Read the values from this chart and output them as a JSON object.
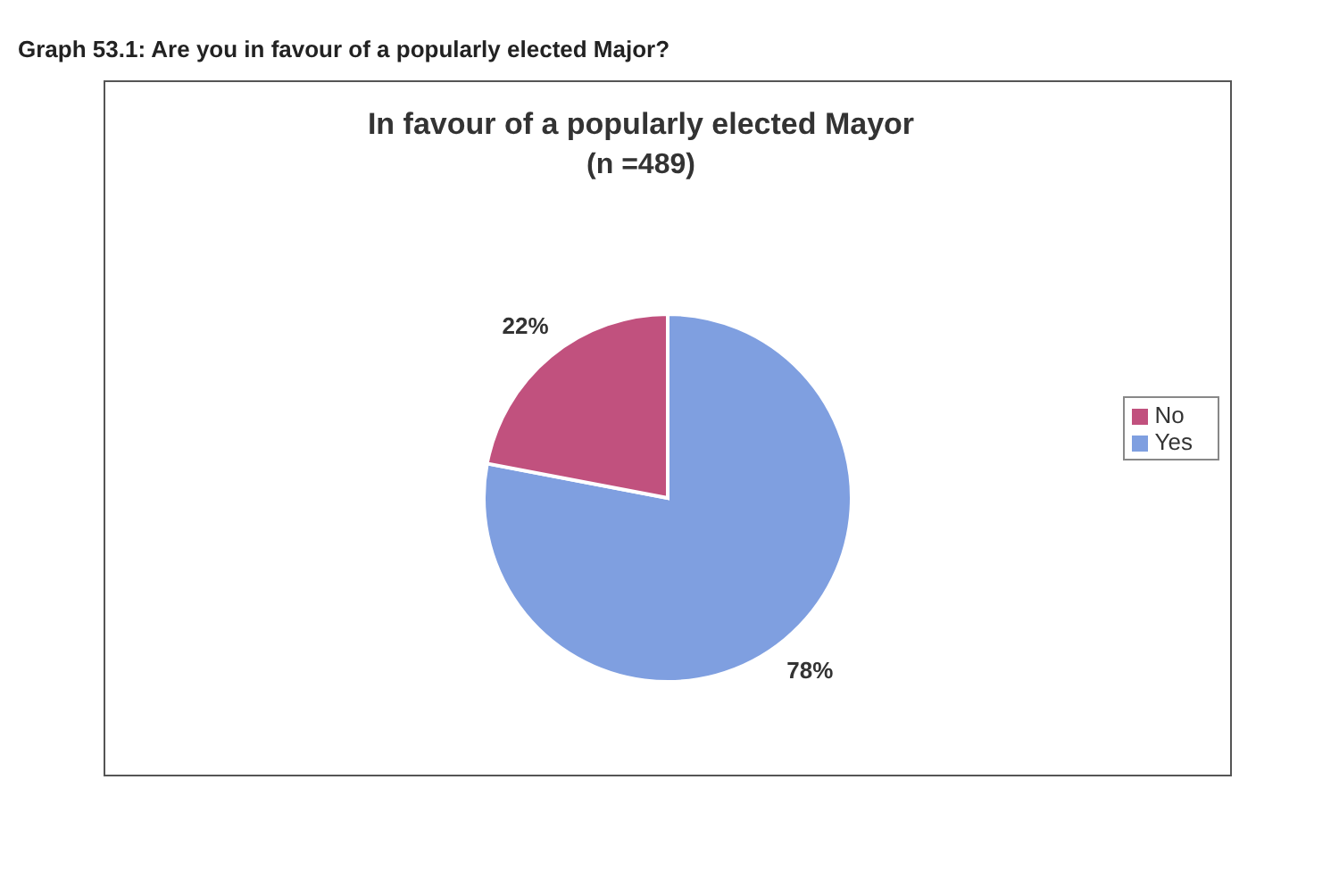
{
  "chart_data": {
    "type": "pie",
    "title": "In favour of a popularly elected Mayor",
    "subtitle": "(n =489)",
    "annotations": [
      "Graph 53.1: Are you in favour of a popularly elected Major?"
    ],
    "categories": [
      "Yes",
      "No"
    ],
    "values": [
      78,
      22
    ],
    "value_labels": [
      "78%",
      "22%"
    ],
    "colors": [
      "#7f9fe0",
      "#c1517e"
    ],
    "legend": "right"
  }
}
